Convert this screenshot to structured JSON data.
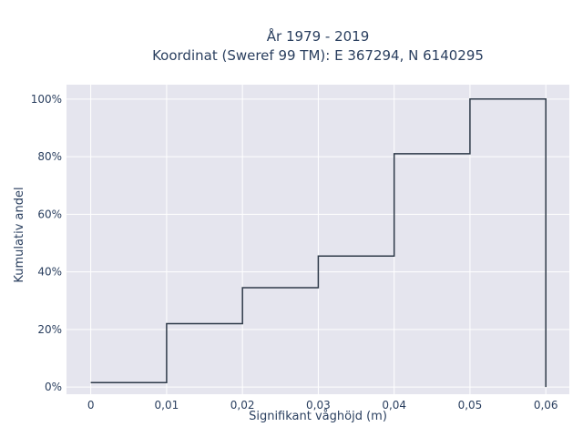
{
  "chart_data": {
    "type": "line",
    "line_shape": "step",
    "title_line1": "År 1979 - 2019",
    "title_line2": "Koordinat (Sweref 99 TM): E 367294, N 6140295",
    "xlabel": "Signifikant våghöjd (m)",
    "ylabel": "Kumulativ andel",
    "x_ticks": [
      0,
      0.01,
      0.02,
      0.03,
      0.04,
      0.05,
      0.06
    ],
    "x_tick_labels": [
      "0",
      "0,01",
      "0,02",
      "0,03",
      "0,04",
      "0,05",
      "0,06"
    ],
    "y_ticks": [
      0,
      20,
      40,
      60,
      80,
      100
    ],
    "y_tick_labels": [
      "0%",
      "20%",
      "40%",
      "60%",
      "80%",
      "100%"
    ],
    "xlim": [
      -0.0032,
      0.0631
    ],
    "ylim": [
      -2.5,
      105
    ],
    "grid": true,
    "colors": {
      "plot_bg": "#e5e5ee",
      "grid": "#ffffff",
      "line": "#2e3a49",
      "text": "#2a3f5f"
    },
    "series": [
      {
        "x": [
          0,
          0.01,
          0.01,
          0.02,
          0.02,
          0.03,
          0.03,
          0.04,
          0.04,
          0.05,
          0.05,
          0.06,
          0.06
        ],
        "y": [
          1.5,
          1.5,
          22,
          22,
          34.5,
          34.5,
          45.5,
          45.5,
          81,
          81,
          100,
          100,
          0
        ]
      }
    ]
  }
}
